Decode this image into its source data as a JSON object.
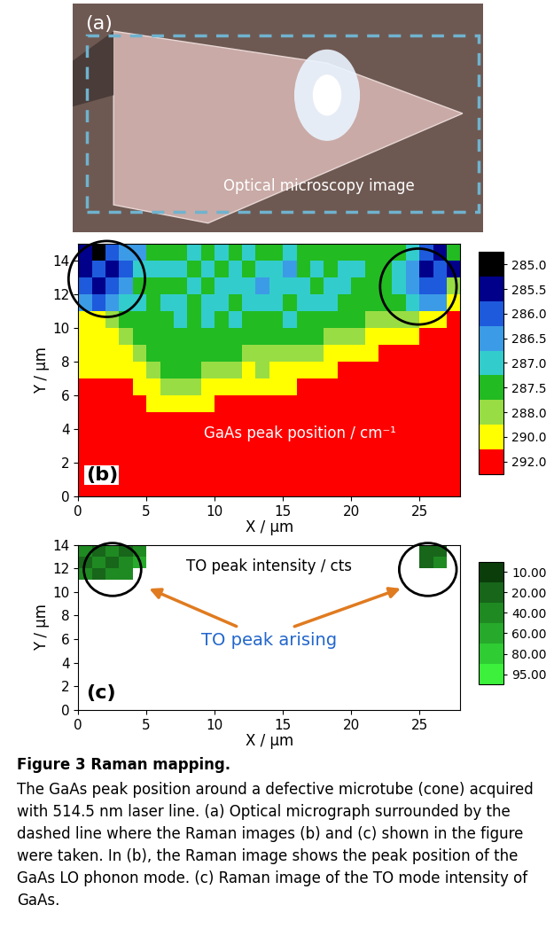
{
  "image_panel": {
    "label": "(a)",
    "text": "Optical microscopy image"
  },
  "chart_data": [
    {
      "type": "heatmap",
      "label": "(b)",
      "annotation": "GaAs peak position / cm⁻¹",
      "xlabel": "X / µm",
      "ylabel": "Y / µm",
      "xlim": [
        0,
        28
      ],
      "ylim": [
        0,
        15
      ],
      "xticks": [
        0,
        5,
        10,
        15,
        20,
        25
      ],
      "yticks": [
        0,
        2,
        4,
        6,
        8,
        10,
        12,
        14
      ],
      "colorbar": {
        "levels": [
          285.0,
          285.5,
          286.0,
          286.5,
          287.0,
          287.5,
          288.0,
          290.0,
          292.0
        ],
        "colors": [
          "#000000",
          "#00008b",
          "#1e5adc",
          "#3c9be6",
          "#33cccc",
          "#22bb22",
          "#99dd44",
          "#ffff00",
          "#ff0000"
        ]
      },
      "cells": [
        [
          292,
          292,
          292,
          292,
          292,
          292,
          292,
          292,
          292,
          292,
          292,
          292,
          292,
          292,
          292,
          292,
          292,
          292,
          292,
          292,
          292,
          292,
          292,
          292,
          292,
          292,
          292,
          292
        ],
        [
          292,
          292,
          292,
          292,
          292,
          292,
          292,
          292,
          292,
          292,
          292,
          292,
          292,
          292,
          292,
          292,
          292,
          292,
          292,
          292,
          292,
          292,
          292,
          292,
          292,
          292,
          292,
          292
        ],
        [
          292,
          292,
          292,
          292,
          292,
          292,
          292,
          292,
          292,
          292,
          292,
          292,
          292,
          292,
          292,
          292,
          292,
          292,
          292,
          292,
          292,
          292,
          292,
          292,
          292,
          292,
          292,
          292
        ],
        [
          292,
          292,
          292,
          292,
          292,
          292,
          292,
          292,
          292,
          292,
          292,
          292,
          292,
          292,
          292,
          292,
          292,
          292,
          292,
          292,
          292,
          292,
          292,
          292,
          292,
          292,
          292,
          292
        ],
        [
          292,
          292,
          292,
          292,
          292,
          292,
          292,
          292,
          292,
          292,
          292,
          292,
          292,
          292,
          292,
          292,
          292,
          292,
          292,
          292,
          292,
          292,
          292,
          292,
          292,
          292,
          292,
          292
        ],
        [
          292,
          292,
          292,
          292,
          292,
          290,
          290,
          290,
          290,
          290,
          292,
          292,
          292,
          292,
          292,
          292,
          292,
          292,
          292,
          292,
          292,
          292,
          292,
          292,
          292,
          292,
          292,
          292
        ],
        [
          292,
          292,
          292,
          292,
          290,
          290,
          288,
          288,
          288,
          290,
          290,
          290,
          290,
          290,
          290,
          290,
          292,
          292,
          292,
          292,
          292,
          292,
          292,
          292,
          292,
          292,
          292,
          292
        ],
        [
          290,
          290,
          290,
          290,
          290,
          288,
          287.5,
          287.5,
          287.5,
          288,
          288,
          288,
          290,
          288,
          290,
          290,
          290,
          290,
          290,
          292,
          292,
          292,
          292,
          292,
          292,
          292,
          292,
          292
        ],
        [
          290,
          290,
          290,
          290,
          288,
          287.5,
          287.5,
          287.5,
          287.5,
          287.5,
          287.5,
          287.5,
          288,
          288,
          288,
          288,
          288,
          288,
          290,
          290,
          290,
          290,
          292,
          292,
          292,
          292,
          292,
          292
        ],
        [
          290,
          290,
          290,
          288,
          287.5,
          287.5,
          287.5,
          287.5,
          287.5,
          287.5,
          287.5,
          287.5,
          287.5,
          287.5,
          287.5,
          287.5,
          287.5,
          287.5,
          288,
          288,
          288,
          290,
          290,
          290,
          290,
          292,
          292,
          292
        ],
        [
          290,
          290,
          288,
          287.5,
          287.5,
          287.5,
          287.5,
          287,
          287.5,
          287,
          287.5,
          287,
          287.5,
          287.5,
          287.5,
          287,
          287.5,
          287.5,
          287.5,
          287.5,
          287.5,
          288,
          288,
          288,
          288,
          290,
          290,
          292
        ],
        [
          286.5,
          286,
          286.5,
          287,
          287,
          287.5,
          287,
          287,
          287.5,
          287,
          287,
          287.5,
          287,
          287,
          287,
          287.5,
          287,
          287,
          287,
          287.5,
          287.5,
          287.5,
          287.5,
          287.5,
          287,
          286.5,
          286.5,
          290
        ],
        [
          286,
          285.5,
          286,
          286.5,
          287.5,
          287.5,
          287.5,
          287.5,
          287,
          287.5,
          287,
          287,
          287,
          286.5,
          287,
          287,
          287,
          287.5,
          287,
          287,
          287.5,
          287.5,
          287.5,
          287,
          286.5,
          286,
          286,
          288
        ],
        [
          285.5,
          286,
          285.5,
          286,
          287,
          287,
          287,
          287,
          287.5,
          287,
          287.5,
          287,
          287.5,
          287,
          287,
          286.5,
          287.5,
          287,
          287.5,
          287,
          287,
          287.5,
          287.5,
          287,
          286.5,
          285.5,
          286,
          285.5
        ],
        [
          285.5,
          285,
          286,
          286.5,
          286.5,
          287.5,
          287.5,
          287.5,
          287,
          287.5,
          287,
          287.5,
          287,
          287.5,
          287.5,
          287,
          287.5,
          287.5,
          287.5,
          287.5,
          287.5,
          287.5,
          287.5,
          287.5,
          287,
          286,
          285.5,
          287.5
        ]
      ]
    },
    {
      "type": "heatmap",
      "label": "(c)",
      "annotation": "TO peak intensity / cts",
      "callout": "TO peak arising",
      "xlabel": "X / µm",
      "ylabel": "Y / µm",
      "xlim": [
        0,
        28
      ],
      "ylim": [
        0,
        14
      ],
      "xticks": [
        0,
        5,
        10,
        15,
        20,
        25
      ],
      "yticks": [
        0,
        2,
        4,
        6,
        8,
        10,
        12,
        14
      ],
      "colorbar": {
        "levels": [
          {
            "value": 10,
            "label": "10.00"
          },
          {
            "value": 20,
            "label": "20.00"
          },
          {
            "value": 40,
            "label": "40.00"
          },
          {
            "value": 60,
            "label": "60.00"
          },
          {
            "value": 80,
            "label": "80.00"
          },
          {
            "value": 95,
            "label": "95.00"
          }
        ],
        "colors": [
          "#0b3d0b",
          "#17661a",
          "#1f8a22",
          "#27aa2b",
          "#2fcc33",
          "#3cf03c"
        ]
      },
      "cells": [
        [
          null,
          null,
          null,
          null,
          null,
          null,
          null,
          null,
          null,
          null,
          null,
          null,
          null,
          null,
          null,
          null,
          null,
          null,
          null,
          null,
          null,
          null,
          null,
          null,
          null,
          null,
          null,
          null
        ],
        [
          null,
          null,
          null,
          null,
          null,
          null,
          null,
          null,
          null,
          null,
          null,
          null,
          null,
          null,
          null,
          null,
          null,
          null,
          null,
          null,
          null,
          null,
          null,
          null,
          null,
          null,
          null,
          null
        ],
        [
          null,
          null,
          null,
          null,
          null,
          null,
          null,
          null,
          null,
          null,
          null,
          null,
          null,
          null,
          null,
          null,
          null,
          null,
          null,
          null,
          null,
          null,
          null,
          null,
          null,
          null,
          null,
          null
        ],
        [
          null,
          null,
          null,
          null,
          null,
          null,
          null,
          null,
          null,
          null,
          null,
          null,
          null,
          null,
          null,
          null,
          null,
          null,
          null,
          null,
          null,
          null,
          null,
          null,
          null,
          null,
          null,
          null
        ],
        [
          null,
          null,
          null,
          null,
          null,
          null,
          null,
          null,
          null,
          null,
          null,
          null,
          null,
          null,
          null,
          null,
          null,
          null,
          null,
          null,
          null,
          null,
          null,
          null,
          null,
          null,
          null,
          null
        ],
        [
          null,
          null,
          null,
          null,
          null,
          null,
          null,
          null,
          null,
          null,
          null,
          null,
          null,
          null,
          null,
          null,
          null,
          null,
          null,
          null,
          null,
          null,
          null,
          null,
          null,
          null,
          null,
          null
        ],
        [
          null,
          null,
          null,
          null,
          null,
          null,
          null,
          null,
          null,
          null,
          null,
          null,
          null,
          null,
          null,
          null,
          null,
          null,
          null,
          null,
          null,
          null,
          null,
          null,
          null,
          null,
          null,
          null
        ],
        [
          null,
          null,
          null,
          null,
          null,
          null,
          null,
          null,
          null,
          null,
          null,
          null,
          null,
          null,
          null,
          null,
          null,
          null,
          null,
          null,
          null,
          null,
          null,
          null,
          null,
          null,
          null,
          null
        ],
        [
          null,
          null,
          null,
          null,
          null,
          null,
          null,
          null,
          null,
          null,
          null,
          null,
          null,
          null,
          null,
          null,
          null,
          null,
          null,
          null,
          null,
          null,
          null,
          null,
          null,
          null,
          null,
          null
        ],
        [
          null,
          null,
          null,
          null,
          null,
          null,
          null,
          null,
          null,
          null,
          null,
          null,
          null,
          null,
          null,
          null,
          null,
          null,
          null,
          null,
          null,
          null,
          null,
          null,
          null,
          null,
          null,
          null
        ],
        [
          null,
          null,
          null,
          null,
          null,
          null,
          null,
          null,
          null,
          null,
          null,
          null,
          null,
          null,
          null,
          null,
          null,
          null,
          null,
          null,
          null,
          null,
          null,
          null,
          null,
          null,
          null,
          null
        ],
        [
          40,
          20,
          40,
          40,
          null,
          null,
          null,
          null,
          null,
          null,
          null,
          null,
          null,
          null,
          null,
          null,
          null,
          null,
          null,
          null,
          null,
          null,
          null,
          null,
          null,
          null,
          null,
          null
        ],
        [
          20,
          40,
          20,
          40,
          60,
          null,
          null,
          null,
          null,
          null,
          null,
          null,
          null,
          null,
          null,
          null,
          null,
          null,
          null,
          null,
          null,
          null,
          null,
          null,
          null,
          20,
          40,
          null
        ],
        [
          40,
          20,
          40,
          20,
          40,
          null,
          null,
          null,
          null,
          null,
          null,
          null,
          null,
          null,
          null,
          null,
          null,
          null,
          null,
          null,
          null,
          null,
          null,
          null,
          null,
          20,
          20,
          null
        ]
      ]
    }
  ],
  "caption": {
    "heading": "Figure 3 Raman mapping.",
    "text": "The GaAs peak position around a defective microtube (cone) acquired with 514.5 nm laser line. (a) Optical micrograph surrounded by the dashed line where the Raman images (b) and (c) shown in the figure were taken. In (b), the Raman image shows the peak position of the GaAs LO phonon mode. (c) Raman image of the TO mode intensity of GaAs."
  }
}
